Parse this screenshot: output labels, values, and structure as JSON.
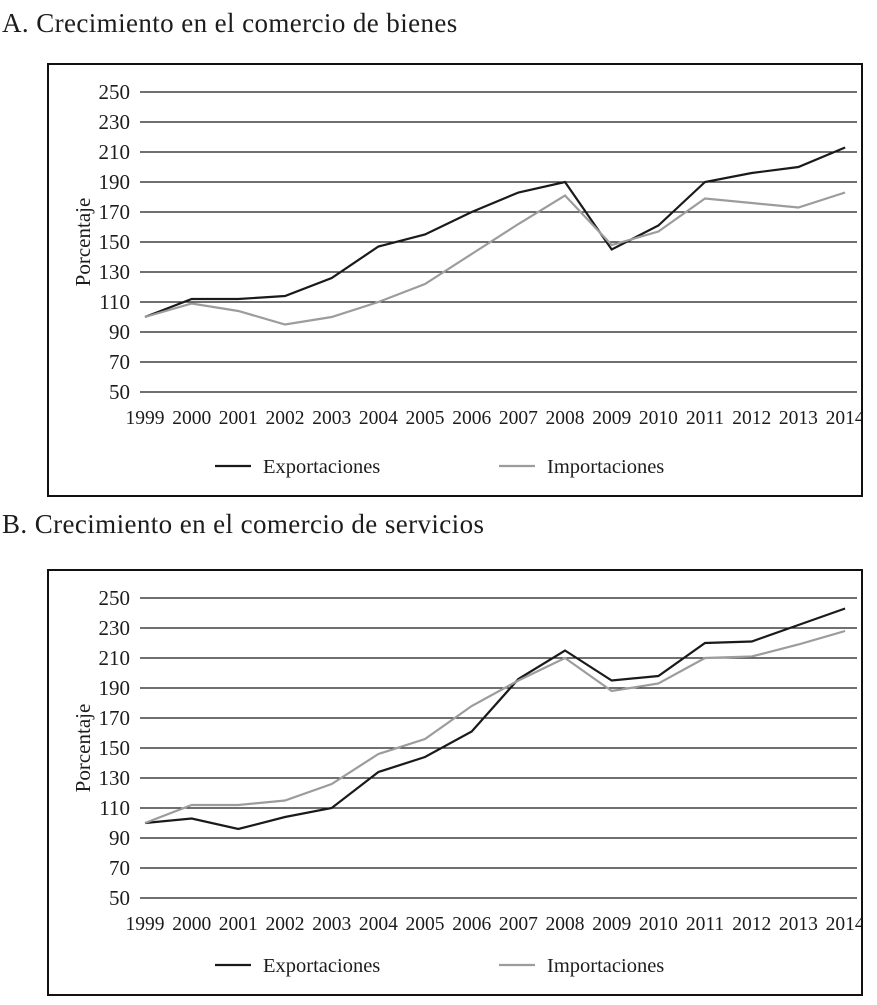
{
  "figure": {
    "panel_a_title": "A. Crecimiento en el comercio de bienes",
    "panel_b_title": "B. Crecimiento en el comercio de servicios"
  },
  "colors": {
    "exportaciones": "#1a1a1a",
    "importaciones": "#9c9c9c",
    "grid": "#1a1a1a",
    "background": "#ffffff"
  },
  "chart_data": [
    {
      "id": "bienes",
      "type": "line",
      "title": "A. Crecimiento en el comercio de bienes",
      "xlabel": "",
      "ylabel": "Porcentaje",
      "ylim": [
        50,
        250
      ],
      "ytick_step": 20,
      "yticks": [
        250,
        230,
        210,
        190,
        170,
        150,
        130,
        110,
        90,
        70,
        50
      ],
      "grid": "horizontal",
      "legend_position": "bottom",
      "x": [
        1999,
        2000,
        2001,
        2002,
        2003,
        2004,
        2005,
        2006,
        2007,
        2008,
        2009,
        2010,
        2011,
        2012,
        2013,
        2014
      ],
      "series": [
        {
          "name": "Exportaciones",
          "color": "#1a1a1a",
          "values": [
            100,
            112,
            112,
            114,
            126,
            147,
            155,
            170,
            183,
            190,
            145,
            161,
            190,
            196,
            200,
            213
          ]
        },
        {
          "name": "Importaciones",
          "color": "#9c9c9c",
          "values": [
            100,
            109,
            104,
            95,
            100,
            110,
            122,
            142,
            162,
            181,
            148,
            157,
            179,
            176,
            173,
            183
          ]
        }
      ]
    },
    {
      "id": "servicios",
      "type": "line",
      "title": "B. Crecimiento en el comercio de servicios",
      "xlabel": "",
      "ylabel": "Porcentaje",
      "ylim": [
        50,
        250
      ],
      "ytick_step": 20,
      "yticks": [
        250,
        230,
        210,
        190,
        170,
        150,
        130,
        110,
        90,
        70,
        50
      ],
      "grid": "horizontal",
      "legend_position": "bottom",
      "x": [
        1999,
        2000,
        2001,
        2002,
        2003,
        2004,
        2005,
        2006,
        2007,
        2008,
        2009,
        2010,
        2011,
        2012,
        2013,
        2014
      ],
      "series": [
        {
          "name": "Exportaciones",
          "color": "#1a1a1a",
          "values": [
            100,
            103,
            96,
            104,
            110,
            134,
            144,
            161,
            196,
            215,
            195,
            198,
            220,
            221,
            232,
            243
          ]
        },
        {
          "name": "Importaciones",
          "color": "#9c9c9c",
          "values": [
            100,
            112,
            112,
            115,
            126,
            146,
            156,
            178,
            195,
            210,
            188,
            193,
            210,
            211,
            219,
            228
          ]
        }
      ]
    }
  ]
}
